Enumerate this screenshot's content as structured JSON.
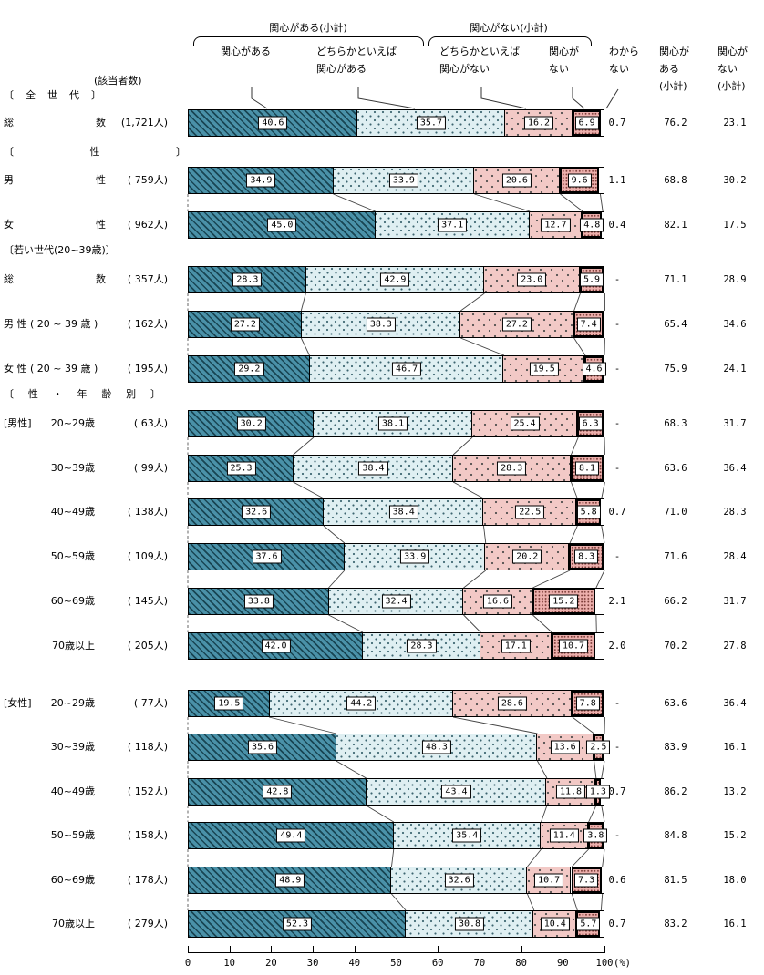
{
  "header": {
    "respondents_label": "(該当者数)",
    "bracket_yes": "関心がある(小計)",
    "bracket_no": "関心がない(小計)",
    "col_interested": "関心がある",
    "col_somewhat_interested": "どちらかといえば\n関心がある",
    "col_somewhat_not_interested": "どちらかといえば\n関心がない",
    "col_not_interested": "関心が\nない",
    "col_dont_know": "わから\nない",
    "col_subtotal_yes": "関心が\nある\n(小計)",
    "col_subtotal_no": "関心が\nない\n(小計)"
  },
  "chart_data": {
    "type": "bar",
    "stacked": true,
    "orientation": "horizontal",
    "title": "",
    "series_names": [
      "関心がある",
      "どちらかといえば関心がある",
      "どちらかといえば関心がない",
      "関心がない"
    ],
    "extra_value_columns": [
      "わからない",
      "関心がある(小計)",
      "関心がない(小計)"
    ],
    "axis": {
      "min": 0,
      "max": 100,
      "ticks": [
        0,
        10,
        20,
        30,
        40,
        50,
        60,
        70,
        80,
        90,
        100
      ],
      "unit": "(%)"
    },
    "colors": {
      "interested": "#4A91A8",
      "somewhat_interested": "#DFEFF2",
      "somewhat_not_interested": "#F2C9C6",
      "not_interested": "#ECAFAC",
      "hatch": "#1E4753",
      "border": "#000000"
    },
    "sections": [
      {
        "text": "〔全世代〕"
      },
      {
        "text": "〔性〕"
      },
      {
        "text": "〔若い世代(20~39歳)〕"
      },
      {
        "text": "〔性・年齢別〕"
      }
    ],
    "rows": [
      {
        "label_parts": [
          "総",
          "数"
        ],
        "count": "(1,721人)",
        "values": [
          "40.6",
          "35.7",
          "16.2",
          "6.9"
        ],
        "dont_know": "0.7",
        "subtotal_yes": "76.2",
        "subtotal_no": "23.1"
      },
      {
        "label_parts": [
          "男",
          "性"
        ],
        "count": "( 759人)",
        "values": [
          "34.9",
          "33.9",
          "20.6",
          "9.6"
        ],
        "dont_know": "1.1",
        "subtotal_yes": "68.8",
        "subtotal_no": "30.2"
      },
      {
        "label_parts": [
          "女",
          "性"
        ],
        "count": "( 962人)",
        "values": [
          "45.0",
          "37.1",
          "12.7",
          "4.8"
        ],
        "dont_know": "0.4",
        "subtotal_yes": "82.1",
        "subtotal_no": "17.5"
      },
      {
        "label_parts": [
          "総",
          "数"
        ],
        "count": "( 357人)",
        "values": [
          "28.3",
          "42.9",
          "23.0",
          "5.9"
        ],
        "dont_know": "-",
        "subtotal_yes": "71.1",
        "subtotal_no": "28.9"
      },
      {
        "label": "男 性 ( 20 ~ 39 歳 )",
        "count": "( 162人)",
        "values": [
          "27.2",
          "38.3",
          "27.2",
          "7.4"
        ],
        "dont_know": "-",
        "subtotal_yes": "65.4",
        "subtotal_no": "34.6"
      },
      {
        "label": "女 性 ( 20 ~ 39 歳 )",
        "count": "( 195人)",
        "values": [
          "29.2",
          "46.7",
          "19.5",
          "4.6"
        ],
        "dont_know": "-",
        "subtotal_yes": "75.9",
        "subtotal_no": "24.1"
      },
      {
        "prefix": "[男性]",
        "label": "20~29歳",
        "count": "( 63人)",
        "values": [
          "30.2",
          "38.1",
          "25.4",
          "6.3"
        ],
        "dont_know": "-",
        "subtotal_yes": "68.3",
        "subtotal_no": "31.7"
      },
      {
        "label": "30~39歳",
        "count": "( 99人)",
        "values": [
          "25.3",
          "38.4",
          "28.3",
          "8.1"
        ],
        "dont_know": "-",
        "subtotal_yes": "63.6",
        "subtotal_no": "36.4"
      },
      {
        "label": "40~49歳",
        "count": "( 138人)",
        "values": [
          "32.6",
          "38.4",
          "22.5",
          "5.8"
        ],
        "dont_know": "0.7",
        "subtotal_yes": "71.0",
        "subtotal_no": "28.3"
      },
      {
        "label": "50~59歳",
        "count": "( 109人)",
        "values": [
          "37.6",
          "33.9",
          "20.2",
          "8.3"
        ],
        "dont_know": "-",
        "subtotal_yes": "71.6",
        "subtotal_no": "28.4"
      },
      {
        "label": "60~69歳",
        "count": "( 145人)",
        "values": [
          "33.8",
          "32.4",
          "16.6",
          "15.2"
        ],
        "dont_know": "2.1",
        "subtotal_yes": "66.2",
        "subtotal_no": "31.7"
      },
      {
        "label": "70歳以上",
        "count": "( 205人)",
        "values": [
          "42.0",
          "28.3",
          "17.1",
          "10.7"
        ],
        "dont_know": "2.0",
        "subtotal_yes": "70.2",
        "subtotal_no": "27.8"
      },
      {
        "prefix": "[女性]",
        "label": "20~29歳",
        "count": "( 77人)",
        "values": [
          "19.5",
          "44.2",
          "28.6",
          "7.8"
        ],
        "dont_know": "-",
        "subtotal_yes": "63.6",
        "subtotal_no": "36.4"
      },
      {
        "label": "30~39歳",
        "count": "( 118人)",
        "values": [
          "35.6",
          "48.3",
          "13.6",
          "2.5"
        ],
        "dont_know": "-",
        "subtotal_yes": "83.9",
        "subtotal_no": "16.1"
      },
      {
        "label": "40~49歳",
        "count": "( 152人)",
        "values": [
          "42.8",
          "43.4",
          "11.8",
          "1.3"
        ],
        "dont_know": "0.7",
        "subtotal_yes": "86.2",
        "subtotal_no": "13.2"
      },
      {
        "label": "50~59歳",
        "count": "( 158人)",
        "values": [
          "49.4",
          "35.4",
          "11.4",
          "3.8"
        ],
        "dont_know": "-",
        "subtotal_yes": "84.8",
        "subtotal_no": "15.2"
      },
      {
        "label": "60~69歳",
        "count": "( 178人)",
        "values": [
          "48.9",
          "32.6",
          "10.7",
          "7.3"
        ],
        "dont_know": "0.6",
        "subtotal_yes": "81.5",
        "subtotal_no": "18.0"
      },
      {
        "label": "70歳以上",
        "count": "( 279人)",
        "values": [
          "52.3",
          "30.8",
          "10.4",
          "5.7"
        ],
        "dont_know": "0.7",
        "subtotal_yes": "83.2",
        "subtotal_no": "16.1"
      }
    ]
  }
}
